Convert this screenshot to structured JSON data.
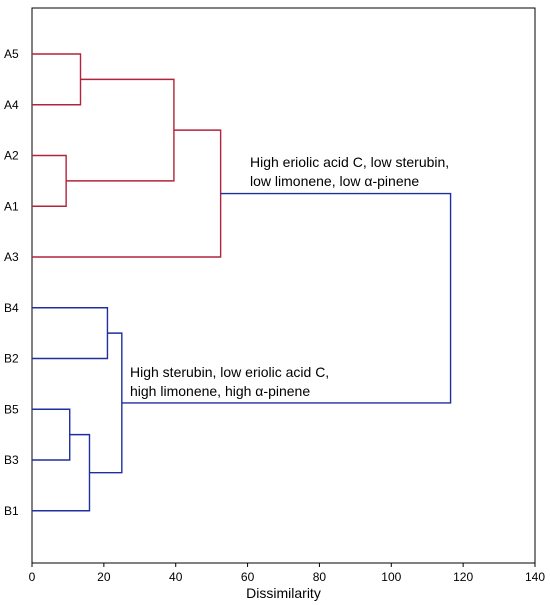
{
  "chart_data": {
    "type": "dendrogram",
    "xlabel": "Dissimilarity",
    "xlim": [
      0,
      140
    ],
    "xticks": [
      0,
      20,
      40,
      60,
      80,
      100,
      120,
      140
    ],
    "leaves": [
      "A5",
      "A4",
      "A2",
      "A1",
      "A3",
      "B4",
      "B2",
      "B5",
      "B3",
      "B1"
    ],
    "colors": {
      "groupA": "#B0243C",
      "groupB": "#1F2F9F"
    },
    "merges": [
      {
        "left": "A5",
        "right": "A4",
        "height": 13.5,
        "group": "groupA"
      },
      {
        "left": "A2",
        "right": "A1",
        "height": 9.5,
        "group": "groupA"
      },
      {
        "left": "A5+A4",
        "right": "A2+A1",
        "height": 39.5,
        "group": "groupA"
      },
      {
        "left": "A5+A4+A2+A1",
        "right": "A3",
        "height": 52.5,
        "group": "groupA"
      },
      {
        "left": "B4",
        "right": "B2",
        "height": 21,
        "group": "groupB"
      },
      {
        "left": "B5",
        "right": "B3",
        "height": 10.5,
        "group": "groupB"
      },
      {
        "left": "B5+B3",
        "right": "B1",
        "height": 16,
        "group": "groupB"
      },
      {
        "left": "B4+B2",
        "right": "B5+B3+B1",
        "height": 25,
        "group": "groupB"
      },
      {
        "left": "A",
        "right": "B",
        "height": 116.5,
        "group": "groupB"
      }
    ],
    "annotations": [
      {
        "lines": [
          "High eriolic acid C, low sterubin,",
          "low limonene, low α-pinene"
        ]
      },
      {
        "lines": [
          "High sterubin, low eriolic acid C,",
          "high limonene, high α-pinene"
        ]
      }
    ]
  }
}
